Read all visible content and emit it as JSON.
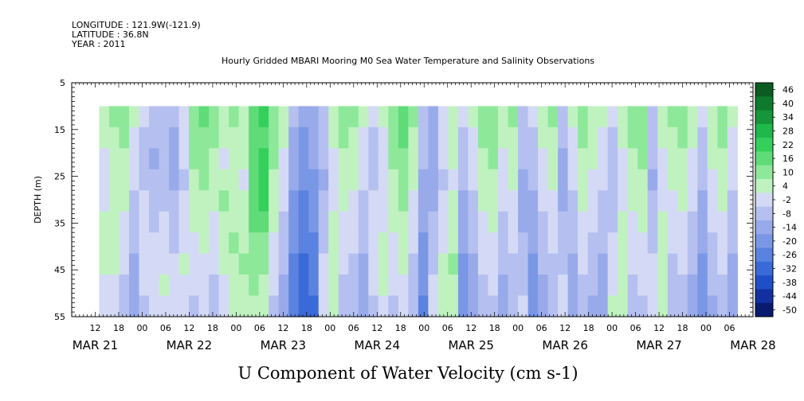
{
  "header": {
    "longitude": "LONGITUDE : 121.9W(-121.9)",
    "latitude": "LATITUDE : 36.8N",
    "year": "YEAR : 2011"
  },
  "chart_data": {
    "type": "heatmap",
    "title": "Hourly Gridded MBARI Mooring M0 Sea Water Temperature and Salinity Observations",
    "xlabel": "U Component of Water Velocity (cm s-1)",
    "ylabel": "DEPTH (m)",
    "ylim": [
      5,
      55
    ],
    "y_inverted": true,
    "y_ticks": [
      5,
      15,
      25,
      35,
      45,
      55
    ],
    "x_range_hours": [
      6,
      180
    ],
    "x_tick_labels": [
      "12",
      "18",
      "00",
      "06",
      "12",
      "18",
      "00",
      "06",
      "12",
      "18",
      "00",
      "06",
      "12",
      "18",
      "00",
      "06",
      "12",
      "18",
      "00",
      "06",
      "12",
      "18",
      "00",
      "06",
      "12",
      "18",
      "00",
      "06"
    ],
    "date_labels": [
      "MAR 21",
      "MAR 22",
      "MAR 23",
      "MAR 24",
      "MAR 25",
      "MAR 26",
      "MAR 27",
      "MAR 28"
    ],
    "data_extent": {
      "start_hour": 13,
      "end_hour": 176,
      "top_depth": 10,
      "bottom_depth": 55
    },
    "colorbar": {
      "levels": [
        -50,
        -44,
        -38,
        -32,
        -26,
        -20,
        -14,
        -8,
        -2,
        4,
        10,
        16,
        22,
        28,
        34,
        40,
        46
      ],
      "labels": [
        "46",
        "40",
        "34",
        "28",
        "22",
        "16",
        "10",
        "4",
        "-2",
        "-8",
        "-14",
        "-20",
        "-26",
        "-32",
        "-38",
        "-44",
        "-50"
      ],
      "colors": [
        "#0a1a6e",
        "#1230a0",
        "#1f4fc8",
        "#3a6ad8",
        "#5a82e0",
        "#7a97e6",
        "#98aaea",
        "#b5c0f0",
        "#d4daf5",
        "#c0f2c0",
        "#8ee89a",
        "#5fdc78",
        "#35cf5c",
        "#1fb84a",
        "#15963a",
        "#0e7a2e",
        "#0a5c22"
      ]
    },
    "series": [
      {
        "values": [
          [
            6,
            10,
            12,
            4,
            -2,
            -6,
            -4,
            -8,
            2,
            14,
            16,
            12,
            6,
            10,
            8,
            18,
            22,
            14,
            8,
            -8,
            -14,
            -10,
            -4,
            6,
            12,
            10,
            4,
            -2,
            4,
            14,
            18,
            10,
            -4,
            -10,
            2,
            8,
            -2,
            4,
            12,
            14,
            6,
            10,
            -4,
            -2,
            6,
            10,
            -6,
            4,
            12,
            8,
            4,
            -2,
            6,
            12,
            14,
            -4,
            6,
            10,
            12,
            6,
            -2,
            8,
            12,
            4
          ],
          [
            4,
            8,
            10,
            2,
            -4,
            -8,
            -6,
            -10,
            0,
            12,
            14,
            10,
            4,
            8,
            6,
            16,
            20,
            12,
            4,
            -10,
            -16,
            -12,
            -6,
            4,
            10,
            8,
            2,
            -4,
            2,
            12,
            16,
            8,
            -6,
            -12,
            0,
            6,
            -4,
            2,
            10,
            12,
            4,
            8,
            -6,
            -4,
            4,
            8,
            -8,
            2,
            10,
            6,
            2,
            -4,
            4,
            10,
            12,
            -6,
            4,
            8,
            10,
            4,
            -4,
            6,
            10,
            2
          ],
          [
            2,
            6,
            8,
            0,
            -6,
            -10,
            -8,
            -12,
            -2,
            10,
            12,
            8,
            2,
            6,
            4,
            18,
            22,
            10,
            2,
            -12,
            -18,
            -14,
            -8,
            2,
            8,
            6,
            0,
            -6,
            0,
            10,
            14,
            6,
            -8,
            -14,
            -2,
            4,
            -6,
            0,
            8,
            10,
            2,
            6,
            -8,
            -6,
            2,
            6,
            -10,
            0,
            8,
            4,
            0,
            -6,
            2,
            8,
            10,
            -8,
            2,
            6,
            8,
            2,
            -6,
            4,
            8,
            0
          ],
          [
            0,
            4,
            6,
            -2,
            -4,
            -8,
            -6,
            -10,
            -4,
            8,
            10,
            6,
            8,
            4,
            2,
            20,
            24,
            8,
            0,
            -14,
            -20,
            -16,
            -10,
            0,
            6,
            4,
            -2,
            -4,
            -2,
            8,
            12,
            4,
            -10,
            -12,
            -4,
            2,
            -8,
            -2,
            6,
            8,
            0,
            4,
            -10,
            -8,
            0,
            4,
            -12,
            -2,
            6,
            2,
            -2,
            -8,
            0,
            6,
            8,
            -10,
            0,
            4,
            6,
            0,
            -8,
            2,
            6,
            -2
          ],
          [
            2,
            6,
            4,
            -4,
            -2,
            -6,
            -4,
            -8,
            -2,
            6,
            8,
            4,
            10,
            6,
            4,
            18,
            22,
            6,
            -2,
            -16,
            -22,
            -18,
            -8,
            2,
            4,
            2,
            -4,
            -2,
            0,
            6,
            10,
            2,
            -12,
            -10,
            -2,
            4,
            -10,
            -4,
            4,
            6,
            -2,
            2,
            -12,
            -10,
            -2,
            2,
            -10,
            -4,
            4,
            0,
            -4,
            -6,
            2,
            4,
            6,
            -8,
            2,
            2,
            4,
            -2,
            -10,
            0,
            4,
            -4
          ],
          [
            4,
            8,
            2,
            -6,
            0,
            -4,
            -2,
            -6,
            0,
            4,
            6,
            2,
            8,
            8,
            6,
            16,
            18,
            4,
            -4,
            -18,
            -24,
            -20,
            -6,
            4,
            2,
            0,
            -6,
            0,
            2,
            4,
            8,
            0,
            -14,
            -8,
            0,
            6,
            -12,
            -6,
            2,
            4,
            -4,
            0,
            -10,
            -12,
            -4,
            0,
            -8,
            -6,
            2,
            -2,
            -6,
            -4,
            4,
            2,
            4,
            -6,
            4,
            0,
            2,
            -4,
            -12,
            -2,
            2,
            -6
          ],
          [
            6,
            6,
            0,
            -8,
            2,
            -2,
            0,
            -4,
            2,
            2,
            4,
            0,
            6,
            10,
            8,
            14,
            14,
            2,
            -6,
            -20,
            -26,
            -22,
            -4,
            6,
            0,
            -2,
            -8,
            2,
            4,
            2,
            6,
            -2,
            -16,
            -6,
            2,
            8,
            -14,
            -8,
            0,
            2,
            -6,
            -2,
            -8,
            -14,
            -6,
            -2,
            -6,
            -8,
            0,
            -4,
            -8,
            -2,
            6,
            0,
            2,
            -4,
            6,
            -2,
            0,
            -6,
            -14,
            -4,
            0,
            -8
          ],
          [
            4,
            4,
            -2,
            -10,
            0,
            0,
            2,
            -2,
            4,
            0,
            2,
            -2,
            4,
            8,
            10,
            12,
            10,
            0,
            -8,
            -22,
            -28,
            -24,
            -2,
            8,
            -2,
            -4,
            -10,
            0,
            6,
            0,
            4,
            -4,
            -18,
            -4,
            4,
            10,
            -16,
            -10,
            -2,
            0,
            -8,
            -4,
            -6,
            -16,
            -8,
            -4,
            -4,
            -10,
            -2,
            -6,
            -10,
            0,
            8,
            -2,
            0,
            -2,
            8,
            -4,
            -2,
            -8,
            -16,
            -6,
            -2,
            -10
          ],
          [
            2,
            2,
            -4,
            -12,
            -2,
            2,
            4,
            0,
            2,
            -2,
            0,
            -4,
            2,
            6,
            8,
            10,
            6,
            -2,
            -10,
            -24,
            -30,
            -26,
            0,
            6,
            -4,
            -6,
            -12,
            -2,
            4,
            -2,
            2,
            -6,
            -20,
            -2,
            6,
            8,
            -18,
            -12,
            -4,
            -2,
            -10,
            -6,
            -4,
            -18,
            -10,
            -6,
            -2,
            -12,
            -4,
            -8,
            -12,
            2,
            6,
            -4,
            -2,
            0,
            6,
            -6,
            -4,
            -10,
            -18,
            -8,
            -4,
            -12
          ],
          [
            0,
            0,
            -6,
            -14,
            -4,
            0,
            2,
            2,
            0,
            -4,
            -2,
            -6,
            0,
            4,
            6,
            8,
            4,
            -4,
            -12,
            -26,
            -32,
            -28,
            2,
            4,
            -6,
            -8,
            -14,
            -4,
            2,
            -4,
            0,
            -8,
            -22,
            0,
            4,
            6,
            -20,
            -14,
            -6,
            -4,
            -12,
            -8,
            -2,
            -20,
            -12,
            -8,
            0,
            -14,
            -6,
            -10,
            -14,
            4,
            4,
            -6,
            -4,
            2,
            4,
            -8,
            -6,
            -12,
            -20,
            -10,
            -6,
            -14
          ]
        ]
      }
    ]
  }
}
